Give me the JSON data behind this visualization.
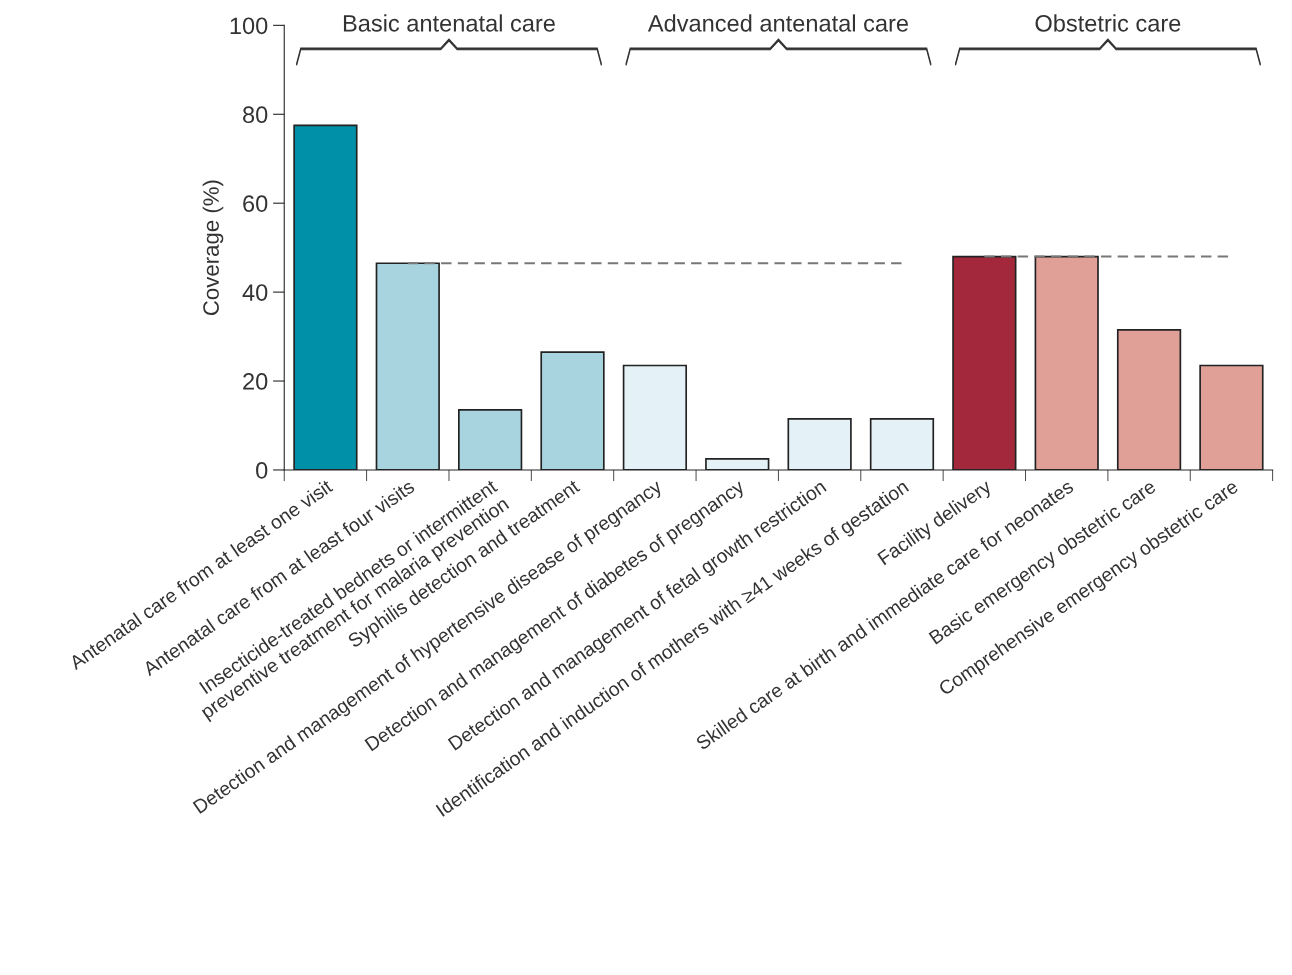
{
  "chart_data": {
    "type": "bar",
    "ylabel": "Coverage (%)",
    "categories": [
      "Antenatal care from at least one visit",
      "Antenatal care from at least four visits",
      "Insecticide-treated bednets or intermittent\npreventive treatment for malaria prevention",
      "Syphilis detection and treatment",
      "Detection and management of hypertensive disease of pregnancy",
      "Detection and management of diabetes of pregnancy",
      "Detection and management of fetal growth restriction",
      "Identification and induction of mothers with ≥41 weeks of gestation",
      "Facility delivery",
      "Skilled care at birth and immediate care for neonates",
      "Basic emergency obstetric care",
      "Comprehensive emergency obstetric care"
    ],
    "series": [
      {
        "colors": [
          "#0090a8",
          "#a8d4e0",
          "#a8d4e0",
          "#a8d4e0",
          "#e4f1f6",
          "#e4f1f6",
          "#e4f1f6",
          "#e4f1f6",
          "#a3283c",
          "#e0a098",
          "#e0a098",
          "#e0a098"
        ],
        "values": [
          77.5,
          46.5,
          13.5,
          26.5,
          23.5,
          2.5,
          11.5,
          11.5,
          48,
          48,
          31.5,
          23.5
        ]
      },
      {
        "type": "line",
        "color": "#777777",
        "line_style": "dashed",
        "values": [
          null,
          46.5,
          46.5,
          46.5,
          46.5,
          46.5,
          46.5,
          46.5,
          null,
          null,
          null,
          null
        ]
      },
      {
        "type": "line",
        "color": "#777777",
        "line_style": "dashed",
        "values": [
          null,
          null,
          null,
          null,
          null,
          null,
          null,
          null,
          48,
          48,
          48,
          48
        ]
      }
    ],
    "ylim": [
      0,
      100
    ],
    "yticks": [
      0,
      20,
      40,
      60,
      80,
      100
    ],
    "annotations": [
      "Basic antenatal care",
      "Advanced antenatal care",
      "Obstetric care"
    ],
    "grid": false,
    "legend": false,
    "marker": "none"
  }
}
